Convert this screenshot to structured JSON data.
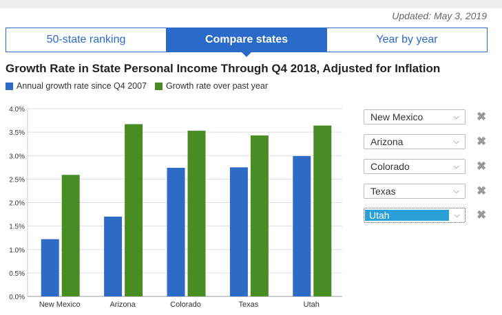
{
  "updated": "Updated: May 3, 2019",
  "tabs": [
    {
      "label": "50-state ranking",
      "active": false
    },
    {
      "label": "Compare states",
      "active": true
    },
    {
      "label": "Year by year",
      "active": false
    }
  ],
  "colors": {
    "accent": "#2a6ac8",
    "series_blue": "#2e6bc6",
    "series_green": "#4a8c24",
    "selected": "#2a9fd8"
  },
  "selectors": [
    {
      "value": "New Mexico",
      "highlighted": false
    },
    {
      "value": "Arizona",
      "highlighted": false
    },
    {
      "value": "Colorado",
      "highlighted": false
    },
    {
      "value": "Texas",
      "highlighted": false
    },
    {
      "value": "Utah",
      "highlighted": true
    }
  ],
  "icons": {
    "dropdown": "chevron-down-icon",
    "remove": "close-icon"
  },
  "chart_data": {
    "type": "bar",
    "title": "Growth Rate in State Personal Income Through Q4 2018, Adjusted for Inflation",
    "categories": [
      "New Mexico",
      "Arizona",
      "Colorado",
      "Texas",
      "Utah"
    ],
    "series": [
      {
        "name": "Annual growth rate since Q4 2007",
        "color": "#2e6bc6",
        "values": [
          1.22,
          1.7,
          2.74,
          2.75,
          2.99
        ]
      },
      {
        "name": "Growth rate over past year",
        "color": "#4a8c24",
        "values": [
          2.59,
          3.67,
          3.53,
          3.43,
          3.64
        ]
      }
    ],
    "ylim": [
      0,
      4.0
    ],
    "yticks": [
      "0.0%",
      "0.5%",
      "1.0%",
      "1.5%",
      "2.0%",
      "2.5%",
      "3.0%",
      "3.5%",
      "4.0%"
    ],
    "grid": true,
    "legend": "top-left"
  }
}
